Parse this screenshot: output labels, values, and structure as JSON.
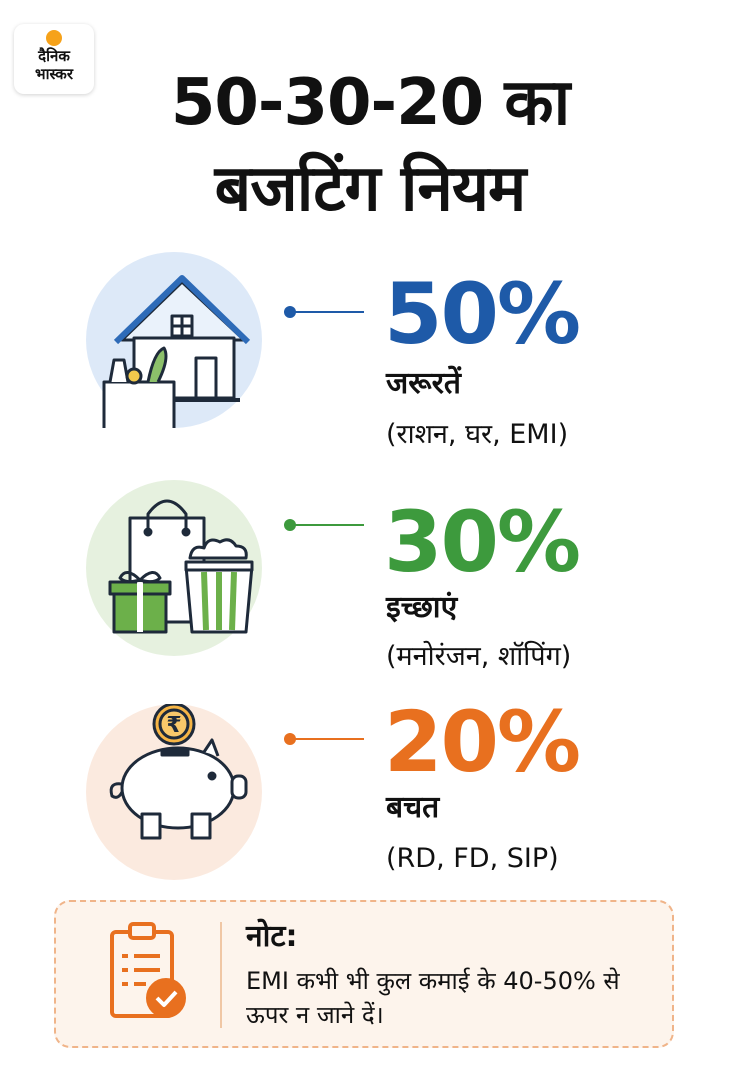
{
  "logo": {
    "line1": "दैनिक",
    "line2": "भास्कर"
  },
  "title": {
    "line1": "50-30-20 का",
    "line2": "बजटिंग नियम"
  },
  "items": [
    {
      "percent": "50%",
      "category": "जरूरतें",
      "examples": "(राशन, घर, EMI)",
      "color": "#1e5aa8",
      "icon": "house-groceries-icon"
    },
    {
      "percent": "30%",
      "category": "इच्छाएं",
      "examples": "(मनोरंजन, शॉपिंग)",
      "color": "#3d9a3d",
      "icon": "shopping-gift-popcorn-icon"
    },
    {
      "percent": "20%",
      "category": "बचत",
      "examples": "(RD, FD, SIP)",
      "color": "#e8701f",
      "icon": "piggy-bank-rupee-icon"
    }
  ],
  "note": {
    "title": "नोट:",
    "body": "EMI कभी भी कुल कमाई के 40-50% से ऊपर न जाने दें।",
    "icon": "clipboard-check-icon"
  }
}
